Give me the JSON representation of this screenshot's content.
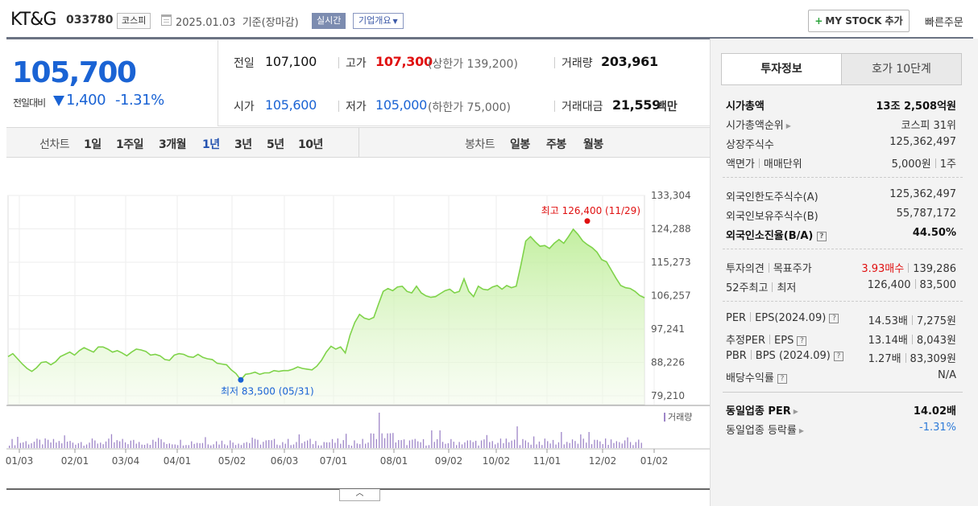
{
  "header": {
    "stock_name": "KT&G",
    "stock_code": "033780",
    "market": "코스피",
    "date_text": "2025.01.03  기준(장마감)",
    "realtime_label": "실시간",
    "company_overview": "기업개요",
    "add_mystock": "MY STOCK 추가",
    "quick_order": "빠른주문"
  },
  "price": {
    "current": "105,700",
    "change_label": "전일대비",
    "change_value": "1,400",
    "change_rate": "-1.31%",
    "direction": "down"
  },
  "summary": {
    "prev_close_label": "전일",
    "prev_close": "107,100",
    "high_label": "고가",
    "high": "107,300",
    "upper_limit": "(상한가 139,200)",
    "volume_label": "거래량",
    "volume": "203,961",
    "open_label": "시가",
    "open": "105,600",
    "low_label": "저가",
    "low": "105,000",
    "lower_limit": "(하한가 75,000)",
    "amount_label": "거래대금",
    "amount": "21,559",
    "amount_unit": "백만"
  },
  "period_bar": {
    "line_chart_label": "선차트",
    "line_periods": [
      "1일",
      "1주일",
      "3개월",
      "1년",
      "3년",
      "5년",
      "10년"
    ],
    "active_period": "1년",
    "candle_chart_label": "봉차트",
    "candle_periods": [
      "일봉",
      "주봉",
      "월봉"
    ]
  },
  "chart_data": {
    "type": "area",
    "y_ticks": [
      "133,304",
      "124,288",
      "115,273",
      "106,257",
      "97,241",
      "88,226",
      "79,210"
    ],
    "x_ticks": [
      "01/03",
      "02/01",
      "03/04",
      "04/01",
      "05/02",
      "06/03",
      "07/01",
      "08/01",
      "09/02",
      "10/02",
      "11/01",
      "12/02",
      "01/02"
    ],
    "ylim": [
      79210,
      133304
    ],
    "max_annotation": "최고 126,400 (11/29)",
    "min_annotation": "최저 83,500 (05/31)",
    "volume_legend": "거래량",
    "series": [
      {
        "name": "종가",
        "values": [
          89800,
          90600,
          89200,
          87800,
          86600,
          85800,
          86800,
          88200,
          88400,
          87600,
          88400,
          89800,
          90400,
          91000,
          90200,
          91400,
          92200,
          91600,
          91000,
          92400,
          92400,
          91800,
          91000,
          91400,
          90800,
          90000,
          91000,
          91800,
          91600,
          91200,
          90200,
          90400,
          90000,
          89000,
          88800,
          90200,
          90600,
          90400,
          89800,
          89600,
          90400,
          89600,
          89200,
          89000,
          88000,
          87800,
          87600,
          86200,
          85200,
          83500,
          85000,
          85200,
          85600,
          85000,
          85400,
          85400,
          86000,
          85800,
          86000,
          86000,
          86400,
          87000,
          86600,
          86400,
          86200,
          87200,
          88800,
          91000,
          92600,
          91800,
          92400,
          90800,
          95600,
          99000,
          101200,
          100200,
          99800,
          100400,
          104000,
          107400,
          108200,
          107600,
          108600,
          108800,
          107400,
          107000,
          108800,
          107000,
          106200,
          105800,
          106000,
          106800,
          107600,
          108000,
          107000,
          107400,
          110800,
          107400,
          106000,
          108800,
          108000,
          107800,
          108600,
          109000,
          108000,
          109000,
          108400,
          108800,
          114600,
          121000,
          122200,
          120800,
          119600,
          119800,
          119000,
          120400,
          121400,
          120400,
          122200,
          124200,
          122800,
          121000,
          120000,
          119200,
          118000,
          116000,
          115400,
          113200,
          111000,
          109000,
          108400,
          108200,
          107400,
          106300,
          105700
        ]
      },
      {
        "name": "거래량"
      }
    ]
  },
  "right_panel": {
    "tab_invest": "투자정보",
    "tab_hoga": "호가 10단계",
    "market_cap_label": "시가총액",
    "market_cap": "13조 2,508억원",
    "market_cap_rank_label": "시가총액순위",
    "market_cap_rank": "코스피 31위",
    "listed_shares_label": "상장주식수",
    "listed_shares": "125,362,497",
    "par_label": "액면가",
    "trade_unit_label": "매매단위",
    "par_value": "5,000원",
    "trade_unit": "1주",
    "foreign_limit_label": "외국인한도주식수(A)",
    "foreign_limit": "125,362,497",
    "foreign_hold_label": "외국인보유주식수(B)",
    "foreign_hold": "55,787,172",
    "foreign_ratio_label": "외국인소진율(B/A)",
    "foreign_ratio": "44.50%",
    "opinion_label": "투자의견",
    "target_label": "목표주가",
    "opinion": "3.93매수",
    "target": "139,286",
    "week52_high_label": "52주최고",
    "week52_low_label": "최저",
    "week52_high": "126,400",
    "week52_low": "83,500",
    "per_label": "PER",
    "eps_label": "EPS(2024.09)",
    "per": "14.53배",
    "eps": "7,275원",
    "est_per_label": "추정PER",
    "est_eps_label": "EPS",
    "est_per": "13.14배",
    "est_eps": "8,043원",
    "pbr_label": "PBR",
    "bps_label": "BPS (2024.09)",
    "pbr": "1.27배",
    "bps": "83,309원",
    "dividend_label": "배당수익률",
    "dividend": "N/A",
    "industry_per_label": "동일업종 PER",
    "industry_per": "14.02배",
    "industry_chg_label": "동일업종 등락률",
    "industry_chg": "-1.31%"
  }
}
